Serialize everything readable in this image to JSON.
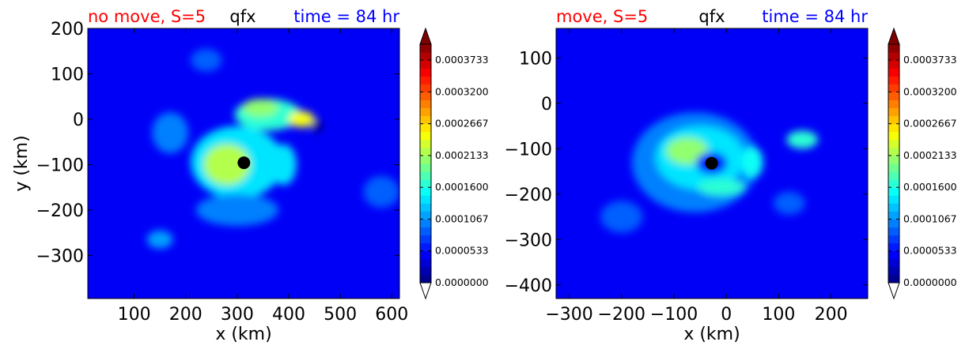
{
  "colors": {
    "title_left": "#ff0000",
    "title_center": "#000000",
    "title_right": "#0000ff",
    "background_field": "#0a2bff",
    "eye": "#000000"
  },
  "colormap": {
    "name": "jet",
    "levels": 30,
    "min": 0.0,
    "max": 0.0004,
    "tick_labels": [
      "0.0000000",
      "0.0000533",
      "0.0001067",
      "0.0001600",
      "0.0002133",
      "0.0002667",
      "0.0003200",
      "0.0003733"
    ],
    "extend": "both"
  },
  "chart_data": [
    {
      "type": "heatmap",
      "field": "qfx",
      "title_left": "no move, S=5",
      "title_center": "qfx",
      "title_right": "time = 84 hr",
      "xlabel": "x (km)",
      "ylabel": "y (km)",
      "xlim": [
        10,
        615
      ],
      "ylim": [
        -395,
        200
      ],
      "xticks": [
        100,
        200,
        300,
        400,
        500,
        600
      ],
      "yticks": [
        200,
        100,
        0,
        -100,
        -200,
        -300
      ],
      "xtick_labels": [
        "100",
        "200",
        "300",
        "400",
        "500",
        "600"
      ],
      "ytick_labels": [
        "200",
        "100",
        "0",
        "−100",
        "−200",
        "−300"
      ],
      "background_value": 4e-05,
      "eye": {
        "x": 313,
        "y": -96
      },
      "features": [
        {
          "x": 313,
          "y": -96,
          "rx": 38,
          "ry": 34,
          "value": 9e-05
        },
        {
          "x": 300,
          "y": -95,
          "rx": 90,
          "ry": 80,
          "value": 0.00014
        },
        {
          "x": 280,
          "y": -100,
          "rx": 45,
          "ry": 45,
          "value": 0.00022
        },
        {
          "x": 360,
          "y": 10,
          "rx": 65,
          "ry": 35,
          "value": 0.00016
        },
        {
          "x": 345,
          "y": 25,
          "rx": 35,
          "ry": 20,
          "value": 0.00021
        },
        {
          "x": 425,
          "y": 0,
          "rx": 25,
          "ry": 18,
          "value": 0.00024
        },
        {
          "x": 455,
          "y": -15,
          "rx": 12,
          "ry": 15,
          "value": 1e-05
        },
        {
          "x": 390,
          "y": -100,
          "rx": 25,
          "ry": 45,
          "value": 0.00014
        },
        {
          "x": 300,
          "y": -200,
          "rx": 80,
          "ry": 35,
          "value": 0.0001
        },
        {
          "x": 170,
          "y": -30,
          "rx": 35,
          "ry": 45,
          "value": 0.0001
        },
        {
          "x": 150,
          "y": -265,
          "rx": 25,
          "ry": 20,
          "value": 0.00011
        },
        {
          "x": 240,
          "y": 130,
          "rx": 30,
          "ry": 25,
          "value": 9e-05
        },
        {
          "x": 580,
          "y": -160,
          "rx": 35,
          "ry": 35,
          "value": 8e-05
        }
      ]
    },
    {
      "type": "heatmap",
      "field": "qfx",
      "title_left": "move, S=5",
      "title_center": "qfx",
      "title_right": "time = 84 hr",
      "xlabel": "x (km)",
      "ylabel": "",
      "xlim": [
        -325,
        270
      ],
      "ylim": [
        -430,
        165
      ],
      "xticks": [
        -300,
        -200,
        -100,
        0,
        100,
        200
      ],
      "yticks": [
        100,
        0,
        -100,
        -200,
        -300,
        -400
      ],
      "xtick_labels": [
        "−300",
        "−200",
        "−100",
        "0",
        "100",
        "200"
      ],
      "ytick_labels": [
        "100",
        "0",
        "−100",
        "−200",
        "−300",
        "−400"
      ],
      "background_value": 4e-05,
      "eye": {
        "x": -28,
        "y": -132
      },
      "features": [
        {
          "x": -60,
          "y": -130,
          "rx": 120,
          "ry": 110,
          "value": 0.0001
        },
        {
          "x": -50,
          "y": -120,
          "rx": 85,
          "ry": 70,
          "value": 0.00014
        },
        {
          "x": -75,
          "y": -105,
          "rx": 40,
          "ry": 30,
          "value": 0.0002
        },
        {
          "x": -28,
          "y": -132,
          "rx": 30,
          "ry": 25,
          "value": 6e-05
        },
        {
          "x": -10,
          "y": -185,
          "rx": 45,
          "ry": 18,
          "value": 0.00016
        },
        {
          "x": 50,
          "y": -130,
          "rx": 20,
          "ry": 35,
          "value": 0.00015
        },
        {
          "x": 145,
          "y": -80,
          "rx": 30,
          "ry": 20,
          "value": 0.00016
        },
        {
          "x": 120,
          "y": -220,
          "rx": 30,
          "ry": 25,
          "value": 9e-05
        },
        {
          "x": -200,
          "y": -250,
          "rx": 40,
          "ry": 35,
          "value": 8e-05
        }
      ]
    }
  ]
}
